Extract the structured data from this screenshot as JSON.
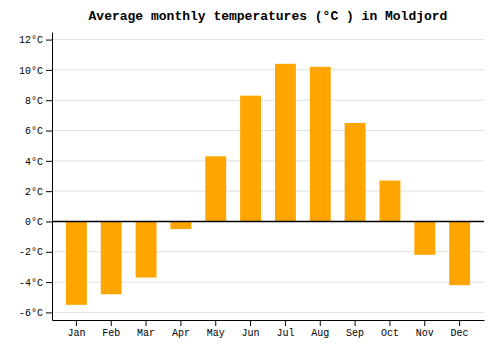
{
  "chart_data": {
    "type": "bar",
    "title": "Average monthly temperatures (°C ) in Moldjord",
    "categories": [
      "Jan",
      "Feb",
      "Mar",
      "Apr",
      "May",
      "Jun",
      "Jul",
      "Aug",
      "Sep",
      "Oct",
      "Nov",
      "Dec"
    ],
    "values": [
      -5.5,
      -4.8,
      -3.7,
      -0.5,
      4.3,
      8.3,
      10.4,
      10.2,
      6.5,
      2.7,
      -2.2,
      -4.2
    ],
    "color": "#FFA500",
    "ylim": [
      -6.5,
      12.5
    ],
    "yticks": [
      {
        "value": -6,
        "label": "-6°C"
      },
      {
        "value": -4,
        "label": "-4°C"
      },
      {
        "value": -2,
        "label": "-2°C"
      },
      {
        "value": 0,
        "label": "0°C"
      },
      {
        "value": 2,
        "label": "2°C"
      },
      {
        "value": 4,
        "label": "4°C"
      },
      {
        "value": 6,
        "label": "6°C"
      },
      {
        "value": 8,
        "label": "8°C"
      },
      {
        "value": 10,
        "label": "10°C"
      },
      {
        "value": 12,
        "label": "12°C"
      }
    ],
    "grid": true
  }
}
